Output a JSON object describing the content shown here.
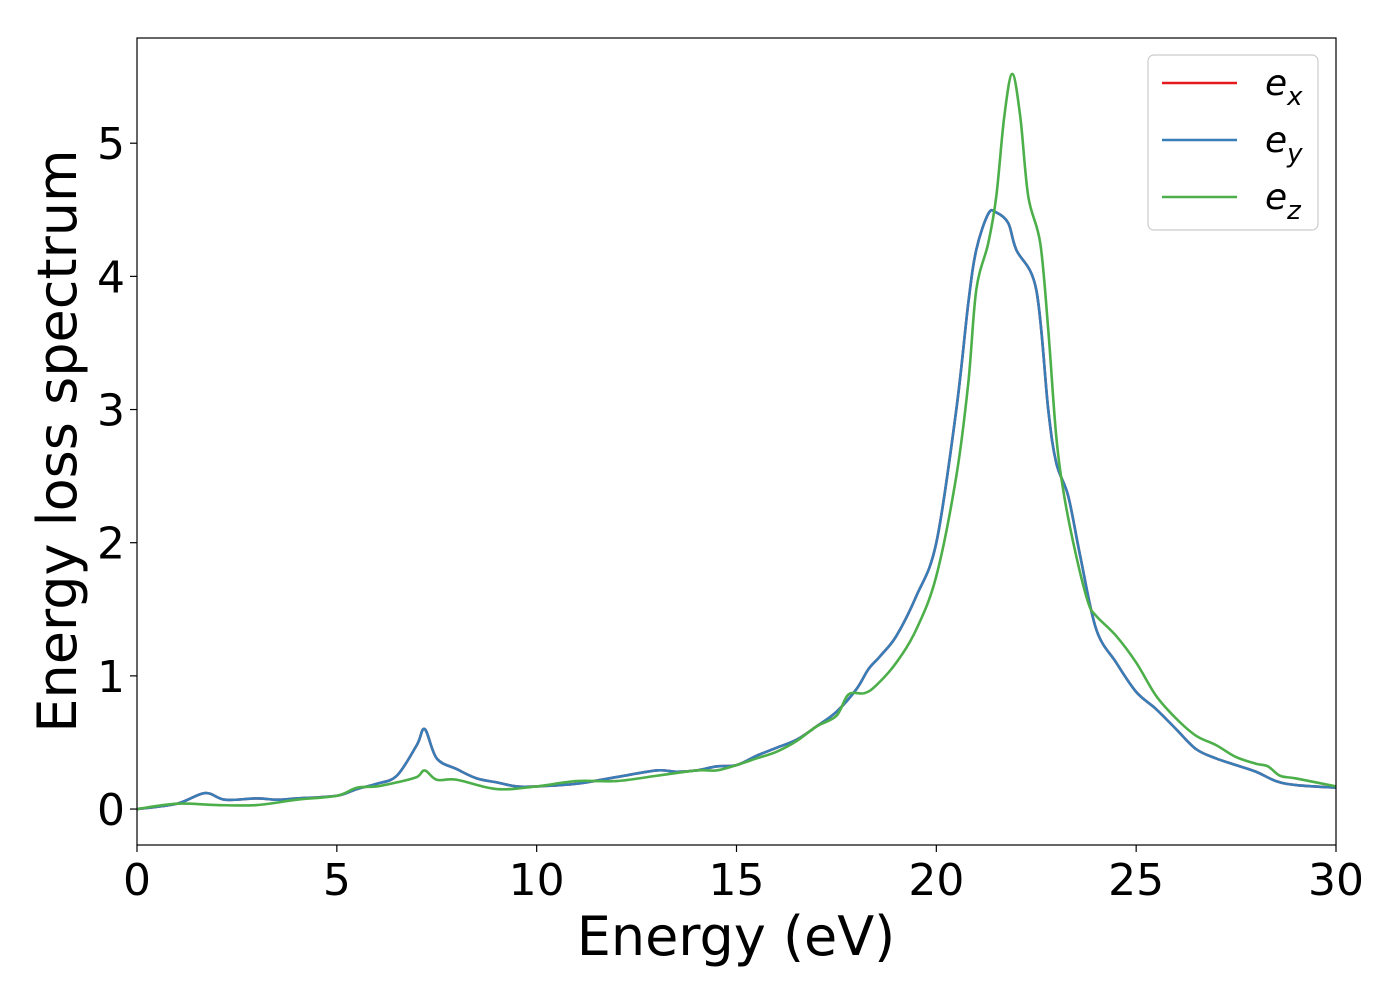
{
  "chart_data": {
    "type": "line",
    "title": "",
    "xlabel": "Energy (eV)",
    "ylabel": "Energy loss spectrum",
    "xlim": [
      0,
      30
    ],
    "ylim": [
      -0.27,
      5.79
    ],
    "xticks": [
      0,
      5,
      10,
      15,
      20,
      25,
      30
    ],
    "xtick_labels": [
      "0",
      "5",
      "10",
      "15",
      "20",
      "25",
      "30"
    ],
    "yticks": [
      0,
      1,
      2,
      3,
      4,
      5
    ],
    "ytick_labels": [
      "0",
      "1",
      "2",
      "3",
      "4",
      "5"
    ],
    "grid": false,
    "legend_position": "top-right",
    "series": [
      {
        "name": "e_x",
        "label_base": "e",
        "label_sub": "x",
        "color": "#e41a1c",
        "x": [
          0,
          1,
          1.7,
          2.2,
          3,
          3.5,
          4,
          5,
          5.5,
          6,
          6.5,
          7,
          7.2,
          7.5,
          8,
          8.5,
          9,
          9.5,
          10,
          11,
          12,
          13,
          13.5,
          14,
          14.5,
          15,
          15.5,
          16,
          16.5,
          17,
          17.5,
          18,
          18.3,
          18.6,
          19,
          19.5,
          20,
          20.5,
          20.8,
          21,
          21.3,
          21.5,
          21.8,
          22,
          22.5,
          22.8,
          23,
          23.3,
          23.6,
          24,
          24.5,
          25,
          25.5,
          26,
          26.5,
          27,
          27.5,
          28,
          28.5,
          29,
          30
        ],
        "y": [
          0,
          0.04,
          0.12,
          0.07,
          0.08,
          0.07,
          0.08,
          0.1,
          0.15,
          0.19,
          0.25,
          0.48,
          0.6,
          0.38,
          0.3,
          0.23,
          0.2,
          0.17,
          0.17,
          0.19,
          0.24,
          0.29,
          0.28,
          0.29,
          0.32,
          0.33,
          0.4,
          0.46,
          0.52,
          0.62,
          0.73,
          0.9,
          1.05,
          1.15,
          1.3,
          1.6,
          2.0,
          3.0,
          3.8,
          4.2,
          4.47,
          4.48,
          4.4,
          4.2,
          3.9,
          3.0,
          2.6,
          2.35,
          1.9,
          1.35,
          1.1,
          0.88,
          0.75,
          0.6,
          0.45,
          0.38,
          0.33,
          0.28,
          0.21,
          0.18,
          0.16
        ]
      },
      {
        "name": "e_y",
        "label_base": "e",
        "label_sub": "y",
        "color": "#377eb8",
        "x": [
          0,
          1,
          1.7,
          2.2,
          3,
          3.5,
          4,
          5,
          5.5,
          6,
          6.5,
          7,
          7.2,
          7.5,
          8,
          8.5,
          9,
          9.5,
          10,
          11,
          12,
          13,
          13.5,
          14,
          14.5,
          15,
          15.5,
          16,
          16.5,
          17,
          17.5,
          18,
          18.3,
          18.6,
          19,
          19.5,
          20,
          20.5,
          20.8,
          21,
          21.3,
          21.5,
          21.8,
          22,
          22.5,
          22.8,
          23,
          23.3,
          23.6,
          24,
          24.5,
          25,
          25.5,
          26,
          26.5,
          27,
          27.5,
          28,
          28.5,
          29,
          30
        ],
        "y": [
          0,
          0.04,
          0.12,
          0.07,
          0.08,
          0.07,
          0.08,
          0.1,
          0.15,
          0.19,
          0.25,
          0.48,
          0.6,
          0.38,
          0.3,
          0.23,
          0.2,
          0.17,
          0.17,
          0.19,
          0.24,
          0.29,
          0.28,
          0.29,
          0.32,
          0.33,
          0.4,
          0.46,
          0.52,
          0.62,
          0.73,
          0.9,
          1.05,
          1.15,
          1.3,
          1.6,
          2.0,
          3.0,
          3.8,
          4.2,
          4.47,
          4.48,
          4.4,
          4.2,
          3.9,
          3.0,
          2.6,
          2.35,
          1.9,
          1.35,
          1.1,
          0.88,
          0.75,
          0.6,
          0.45,
          0.38,
          0.33,
          0.28,
          0.21,
          0.18,
          0.16
        ]
      },
      {
        "name": "e_z",
        "label_base": "e",
        "label_sub": "z",
        "color": "#4daf4a",
        "x": [
          0,
          1,
          2,
          3,
          4,
          5,
          5.5,
          6,
          6.5,
          7,
          7.2,
          7.5,
          8,
          9,
          10,
          11,
          12,
          13,
          14,
          14.5,
          15,
          15.5,
          16,
          16.5,
          17,
          17.5,
          17.8,
          18.2,
          18.5,
          19,
          19.5,
          20,
          20.5,
          20.8,
          21,
          21.3,
          21.5,
          21.7,
          21.9,
          22.1,
          22.3,
          22.6,
          22.8,
          23,
          23.2,
          23.5,
          23.8,
          24,
          24.5,
          25,
          25.5,
          26,
          26.5,
          27,
          27.5,
          28,
          28.3,
          28.6,
          29,
          30
        ],
        "y": [
          0,
          0.04,
          0.03,
          0.03,
          0.07,
          0.1,
          0.16,
          0.17,
          0.2,
          0.24,
          0.29,
          0.22,
          0.22,
          0.15,
          0.17,
          0.21,
          0.21,
          0.25,
          0.29,
          0.29,
          0.33,
          0.38,
          0.43,
          0.51,
          0.62,
          0.7,
          0.86,
          0.87,
          0.93,
          1.1,
          1.35,
          1.75,
          2.5,
          3.2,
          3.9,
          4.25,
          4.6,
          5.2,
          5.52,
          5.2,
          4.6,
          4.25,
          3.6,
          2.8,
          2.35,
          1.9,
          1.55,
          1.45,
          1.3,
          1.1,
          0.85,
          0.68,
          0.55,
          0.48,
          0.39,
          0.34,
          0.32,
          0.25,
          0.23,
          0.17
        ]
      }
    ]
  }
}
